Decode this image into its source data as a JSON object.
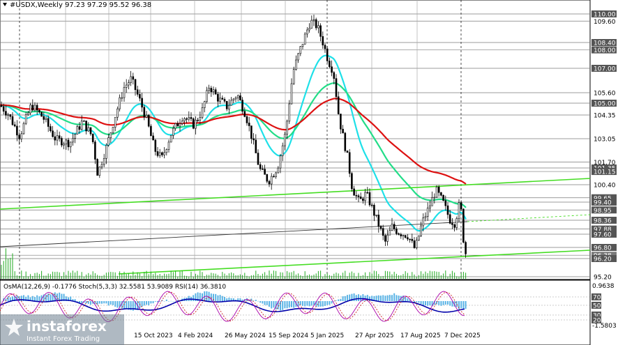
{
  "header": {
    "symbol": "#USDX,Weekly",
    "ohlc": "97.23 97.29 95.52 96.38"
  },
  "chart_data": [
    {
      "type": "candlestick",
      "ylim": [
        95.2,
        110.8
      ],
      "grid": true,
      "price_levels": [
        "110.00",
        "109.60",
        "108.40",
        "108.00",
        "107.00",
        "105.60",
        "105.00",
        "104.35",
        "103.05",
        "101.70",
        "101.35",
        "101.15",
        "100.40",
        "99.65",
        "99.40",
        "98.95",
        "98.36",
        "97.88",
        "97.60",
        "96.80",
        "96.38",
        "96.20",
        "95.20"
      ],
      "highlighted_levels": [
        "110.00",
        "108.40",
        "108.00",
        "107.00",
        "105.00",
        "101.35",
        "101.15",
        "99.65",
        "99.40",
        "98.95",
        "98.36",
        "97.88",
        "97.60",
        "96.80",
        "96.38",
        "96.20"
      ],
      "current_price": "96.38",
      "x_ticks": [
        "15 Oct 2023",
        "4 Feb 2024",
        "26 May 2024",
        "15 Sep 2024",
        "5 Jan 2025",
        "27 Apr 2025",
        "17 Aug 2025",
        "7 Dec 2025"
      ],
      "series": [
        {
          "name": "EMA fast",
          "color": "#1ee0e8"
        },
        {
          "name": "EMA medium",
          "color": "#22dd88"
        },
        {
          "name": "EMA slow",
          "color": "#dd1111"
        },
        {
          "name": "Trend lines",
          "color": "#44dd22"
        }
      ]
    },
    {
      "type": "oscillator",
      "indicator_label": "OsMA(12,26,9) -0.1776 Stoch(5,3,3) 32.5581 53.9089 RSI(14) 36.3810",
      "ylim_labels": [
        "0.9638",
        "-1.5803"
      ],
      "levels": [
        "70",
        "50",
        "30",
        "20"
      ]
    }
  ],
  "watermark": {
    "brand": "instaforex",
    "tagline": "Instant Forex Trading"
  }
}
